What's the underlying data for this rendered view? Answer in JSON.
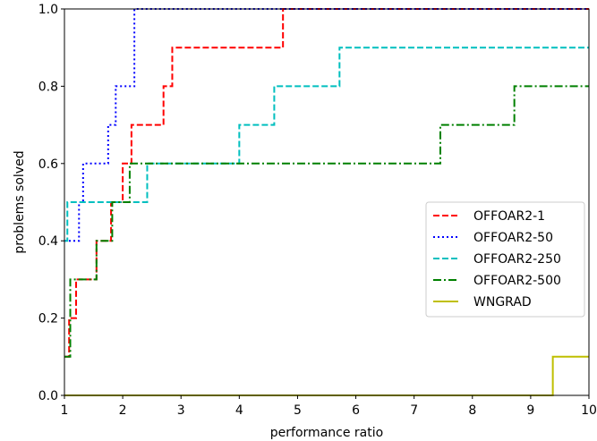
{
  "chart_data": {
    "type": "line",
    "step": true,
    "title": "",
    "xlabel": "performance ratio",
    "ylabel": "problems solved",
    "xlim": [
      1,
      10
    ],
    "ylim": [
      0,
      1
    ],
    "xticks": [
      1,
      2,
      3,
      4,
      5,
      6,
      7,
      8,
      9,
      10
    ],
    "xtick_labels": [
      "1",
      "2",
      "3",
      "4",
      "5",
      "6",
      "7",
      "8",
      "9",
      "10"
    ],
    "yticks": [
      0,
      0.2,
      0.4,
      0.6,
      0.8,
      1.0
    ],
    "ytick_labels": [
      "0.0",
      "0.2",
      "0.4",
      "0.6",
      "0.8",
      "1.0"
    ],
    "grid": false,
    "legend_position": "center-right",
    "series": [
      {
        "name": "OFFOAR2-1",
        "color": "#ff0000",
        "dash": "dashed",
        "x": [
          1,
          1.08,
          1.2,
          1.55,
          1.8,
          2.0,
          2.15,
          2.7,
          2.85,
          4.75,
          10
        ],
        "y": [
          0.1,
          0.2,
          0.3,
          0.4,
          0.5,
          0.6,
          0.7,
          0.8,
          0.9,
          1.0,
          1.0
        ]
      },
      {
        "name": "OFFOAR2-50",
        "color": "#0000ff",
        "dash": "dotted",
        "x": [
          1,
          1.25,
          1.32,
          1.75,
          1.88,
          2.2,
          10
        ],
        "y": [
          0.4,
          0.5,
          0.6,
          0.7,
          0.8,
          1.0,
          1.0
        ]
      },
      {
        "name": "OFFOAR2-250",
        "color": "#00bfbf",
        "dash": "dashed",
        "x": [
          1,
          1.05,
          2.42,
          4.0,
          4.6,
          5.72,
          10
        ],
        "y": [
          0.4,
          0.5,
          0.6,
          0.7,
          0.8,
          0.9,
          0.9
        ]
      },
      {
        "name": "OFFOAR2-500",
        "color": "#008000",
        "dash": "dashdot",
        "x": [
          1,
          1.1,
          1.55,
          1.82,
          2.12,
          7.45,
          8.72,
          10
        ],
        "y": [
          0.1,
          0.3,
          0.4,
          0.5,
          0.6,
          0.7,
          0.8,
          0.8
        ]
      },
      {
        "name": "WNGRAD",
        "color": "#bfbf00",
        "dash": "solid",
        "x": [
          1,
          9.38,
          10
        ],
        "y": [
          0.0,
          0.1,
          0.1
        ]
      }
    ]
  }
}
